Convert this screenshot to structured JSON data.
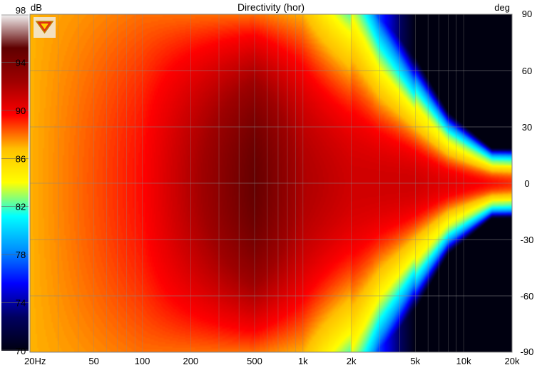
{
  "chart_data": {
    "type": "heatmap",
    "title": "Directivity (hor)",
    "colorbar_unit": "dB",
    "colorbar_ticks": [
      "98",
      "94",
      "90",
      "86",
      "82",
      "78",
      "74",
      "70"
    ],
    "colorbar_range": [
      70,
      98
    ],
    "colorbar_colors": [
      "#000010",
      "#000060",
      "#0000ff",
      "#0090ff",
      "#00ffff",
      "#ffff00",
      "#ffc000",
      "#ff0000",
      "#a00000",
      "#600000",
      "#f4f4f4"
    ],
    "xlabel": "",
    "x_scale": "log",
    "x_range_hz": [
      20,
      20000
    ],
    "x_ticks": [
      {
        "label": "20Hz",
        "value": 20
      },
      {
        "label": "50",
        "value": 50
      },
      {
        "label": "100",
        "value": 100
      },
      {
        "label": "200",
        "value": 200
      },
      {
        "label": "500",
        "value": 500
      },
      {
        "label": "1k",
        "value": 1000
      },
      {
        "label": "2k",
        "value": 2000
      },
      {
        "label": "5k",
        "value": 5000
      },
      {
        "label": "10k",
        "value": 10000
      },
      {
        "label": "20k",
        "value": 20000
      }
    ],
    "ylabel": "deg",
    "y_range_deg": [
      -90,
      90
    ],
    "y_ticks": [
      "90",
      "60",
      "30",
      "0",
      "-30",
      "-60",
      "-90"
    ],
    "grid": true,
    "logo_icon": "shield-logo-icon",
    "data": [
      {
        "freq_hz": 20,
        "level_db_on_axis": 87,
        "level_db_90deg": 87
      },
      {
        "freq_hz": 100,
        "level_db_on_axis": 89.5,
        "level_db_90deg": 88
      },
      {
        "freq_hz": 500,
        "level_db_on_axis": 95,
        "level_db_90deg": 88
      },
      {
        "freq_hz": 1000,
        "level_db_on_axis": 92,
        "level_db_90deg": 87
      },
      {
        "freq_hz": 2000,
        "level_db_on_axis": 91,
        "level_db_90deg": 82
      },
      {
        "freq_hz": 5000,
        "level_db_on_axis": 91,
        "level_db_90deg": 70
      },
      {
        "freq_hz": 10000,
        "level_db_on_axis": 90,
        "level_db_90deg": 70
      },
      {
        "freq_hz": 20000,
        "level_db_on_axis": 89,
        "level_db_90deg": 70
      }
    ],
    "beamwidth_6db_deg": [
      {
        "freq_hz": 2000,
        "half_angle": 80
      },
      {
        "freq_hz": 3000,
        "half_angle": 55
      },
      {
        "freq_hz": 5000,
        "half_angle": 35
      },
      {
        "freq_hz": 8000,
        "half_angle": 20
      },
      {
        "freq_hz": 15000,
        "half_angle": 10
      }
    ]
  }
}
